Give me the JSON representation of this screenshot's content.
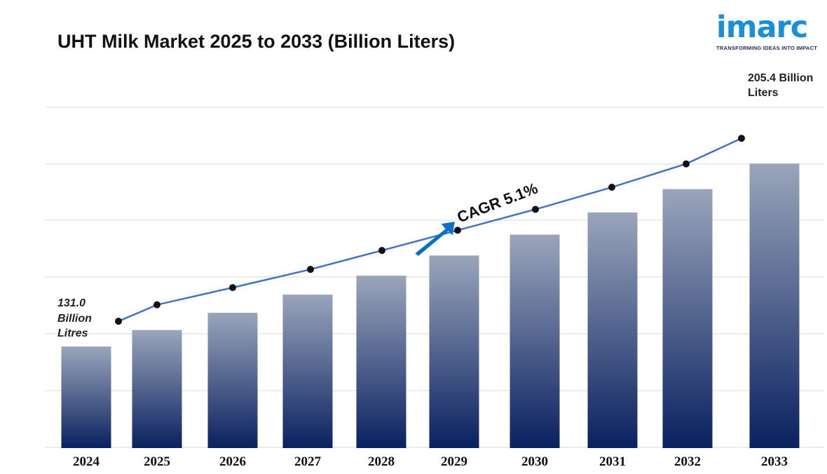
{
  "chart_data": {
    "type": "bar",
    "title": "UHT Milk Market 2025 to 2033 (Billion Liters)",
    "categories": [
      "2024",
      "2025",
      "2026",
      "2027",
      "2028",
      "2029",
      "2030",
      "2031",
      "2032",
      "2033"
    ],
    "values": [
      131.0,
      137.7,
      144.7,
      152.1,
      159.8,
      168.0,
      176.5,
      185.5,
      195.0,
      205.4
    ],
    "trend_values": [
      131.0,
      137.7,
      144.7,
      152.1,
      159.8,
      168.0,
      176.5,
      185.5,
      195.0,
      205.4
    ],
    "ylim": [
      90,
      220
    ],
    "grid": true,
    "bar_color_top": "#9aa5bb",
    "bar_color_bottom": "#0a2160",
    "line_color": "#4472c4",
    "arrow_color": "#0b70c4",
    "annotations": {
      "start_value": "131.0",
      "start_unit_line1": "Billion",
      "start_unit_line2": "Litres",
      "end_line1": "205.4 Billion",
      "end_line2": "Liters",
      "cagr": "CAGR  5.1%"
    }
  },
  "logo": {
    "text": "imarc",
    "tagline": "TRANSFORMING IDEAS INTO IMPACT",
    "color": "#1a8fd6"
  }
}
